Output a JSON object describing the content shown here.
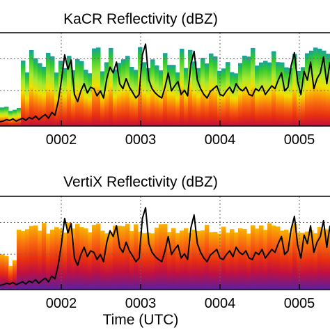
{
  "chart_data": [
    {
      "type": "heatmap",
      "title": "KaCR Reflectivity (dBZ)",
      "xlabel": "",
      "ylabel": "",
      "x_tick_labels": [
        "0002",
        "0003",
        "0004",
        "0005"
      ],
      "colormap": [
        "#5a1fa0",
        "#c01040",
        "#e83010",
        "#f86a10",
        "#f8b400",
        "#f0e000",
        "#a8e830",
        "#30c830",
        "#18a0a0"
      ],
      "overlay_line": {
        "color": "#000000",
        "values": [
          2,
          3,
          5,
          4,
          6,
          3,
          5,
          7,
          4,
          8,
          6,
          10,
          5,
          9,
          12,
          7,
          15,
          11,
          30,
          60,
          95,
          75,
          88,
          40,
          30,
          45,
          55,
          42,
          50,
          48,
          38,
          45,
          35,
          62,
          78,
          70,
          85,
          55,
          48,
          62,
          50,
          43,
          35,
          40,
          95,
          110,
          60,
          48,
          42,
          38,
          35,
          50,
          70,
          45,
          52,
          58,
          40,
          46,
          38,
          82,
          100,
          60,
          48,
          40,
          35,
          44,
          48,
          52,
          40,
          38,
          45,
          50,
          42,
          55,
          48,
          45,
          50,
          40,
          38,
          48,
          45,
          52,
          40,
          46,
          52,
          48,
          60,
          70,
          45,
          50,
          80,
          98,
          58,
          40,
          72,
          60,
          85,
          48,
          62,
          70,
          92,
          55,
          85
        ]
      }
    },
    {
      "type": "heatmap",
      "title": "VertiX Reflectivity (dBZ)",
      "xlabel": "Time (UTC)",
      "ylabel": "",
      "x_tick_labels": [
        "0002",
        "0003",
        "0004",
        "0005"
      ],
      "colormap": [
        "#5a1fa0",
        "#c01040",
        "#e83010",
        "#f86a10",
        "#f8b400",
        "#f0e000"
      ],
      "overlay_line": {
        "color": "#000000",
        "values": [
          2,
          3,
          5,
          4,
          6,
          3,
          5,
          7,
          4,
          8,
          6,
          10,
          5,
          9,
          12,
          7,
          15,
          11,
          30,
          60,
          95,
          75,
          88,
          40,
          30,
          45,
          55,
          42,
          50,
          48,
          38,
          45,
          35,
          62,
          78,
          70,
          85,
          55,
          48,
          62,
          50,
          43,
          35,
          40,
          95,
          110,
          60,
          48,
          42,
          38,
          35,
          50,
          70,
          45,
          52,
          58,
          40,
          46,
          38,
          82,
          100,
          60,
          48,
          40,
          35,
          44,
          48,
          52,
          40,
          38,
          45,
          50,
          42,
          55,
          48,
          45,
          50,
          40,
          38,
          48,
          45,
          52,
          40,
          46,
          52,
          48,
          60,
          70,
          45,
          50,
          80,
          98,
          58,
          40,
          72,
          60,
          85,
          48,
          62,
          70,
          92,
          55,
          85
        ]
      }
    }
  ]
}
